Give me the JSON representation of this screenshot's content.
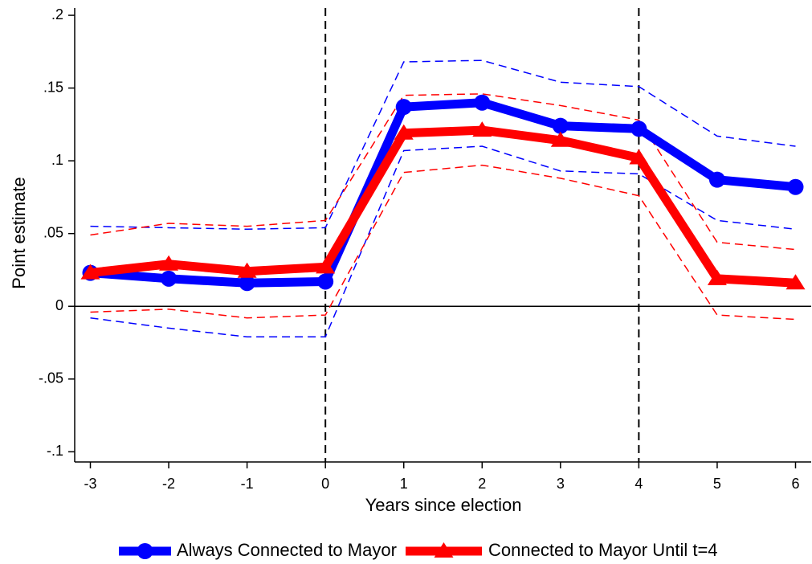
{
  "chart_data": {
    "type": "line",
    "x_label": "Years since election",
    "y_label": "Point estimate",
    "x": [
      -3,
      -2,
      -1,
      0,
      1,
      2,
      3,
      4,
      5,
      6
    ],
    "xlim": [
      -3.2,
      6.2
    ],
    "xticks": [
      -3,
      -2,
      -1,
      0,
      1,
      2,
      3,
      4,
      5,
      6
    ],
    "ylim": [
      -0.107,
      0.205
    ],
    "yticks": [
      {
        "value": -0.1,
        "label": "-.1"
      },
      {
        "value": -0.05,
        "label": "-.05"
      },
      0,
      {
        "value": 0.05,
        "label": ".05"
      },
      {
        "value": 0.1,
        "label": ".1"
      },
      {
        "value": 0.15,
        "label": ".15"
      },
      {
        "value": 0.2,
        "label": ".2"
      }
    ],
    "hline": 0,
    "vlines": [
      0,
      4
    ],
    "series": [
      {
        "name": "Always Connected to Mayor",
        "color": "#0000ff",
        "marker": "circle",
        "values": [
          0.023,
          0.019,
          0.016,
          0.017,
          0.137,
          0.14,
          0.124,
          0.122,
          0.087,
          0.082
        ],
        "upper": [
          0.055,
          0.054,
          0.053,
          0.054,
          0.168,
          0.169,
          0.154,
          0.151,
          0.117,
          0.11
        ],
        "lower": [
          -0.008,
          -0.015,
          -0.021,
          -0.021,
          0.107,
          0.11,
          0.093,
          0.091,
          0.059,
          0.053
        ]
      },
      {
        "name": "Connected to Mayor Until t=4",
        "color": "#ff0000",
        "marker": "triangle",
        "values": [
          0.023,
          0.029,
          0.024,
          0.027,
          0.119,
          0.121,
          0.114,
          0.102,
          0.019,
          0.016
        ],
        "upper": [
          0.049,
          0.057,
          0.055,
          0.059,
          0.145,
          0.146,
          0.138,
          0.128,
          0.044,
          0.039
        ],
        "lower": [
          -0.004,
          -0.002,
          -0.008,
          -0.006,
          0.092,
          0.097,
          0.088,
          0.076,
          -0.006,
          -0.009
        ]
      }
    ]
  }
}
